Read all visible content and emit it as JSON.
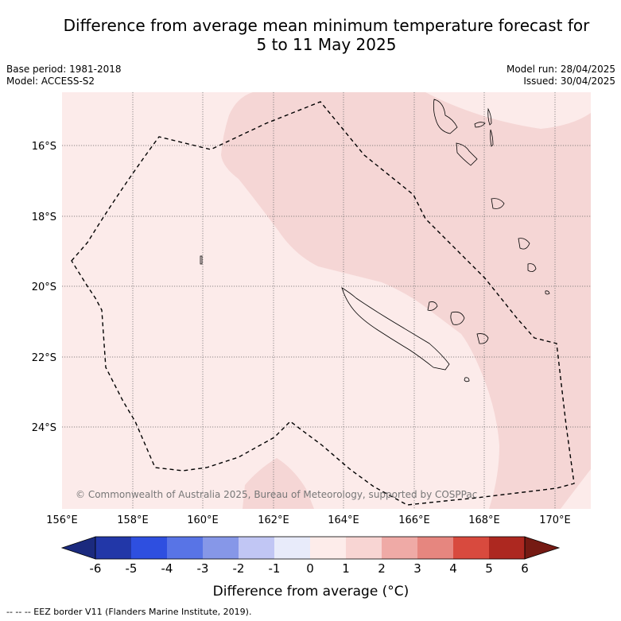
{
  "title_line1": "Difference from average mean minimum temperature forecast for",
  "title_line2": "5 to 11 May 2025",
  "base_period": "Base period: 1981-2018",
  "model": "Model: ACCESS-S2",
  "model_run": "Model run: 28/04/2025",
  "issued": "Issued: 30/04/2025",
  "copyright": "© Commonwealth of Australia 2025, Bureau of Meteorology, supported by COSPPac",
  "colorbar_label": "Difference from average (°C)",
  "footnote": "-- -- -- EEZ border V11 (Flanders Marine Institute, 2019).",
  "x_ticks": [
    "156°E",
    "158°E",
    "160°E",
    "162°E",
    "164°E",
    "166°E",
    "168°E",
    "170°E"
  ],
  "y_ticks": [
    "16°S",
    "18°S",
    "20°S",
    "22°S",
    "24°S"
  ],
  "colorbar_ticks": [
    "-6",
    "-5",
    "-4",
    "-3",
    "-2",
    "-1",
    "0",
    "1",
    "2",
    "3",
    "4",
    "5",
    "6"
  ],
  "colors": {
    "bins": [
      "#2237a8",
      "#2e4fe0",
      "#5874e6",
      "#8697e8",
      "#c1c6f4",
      "#e8ebfa",
      "#fdecea",
      "#f8d5d3",
      "#efaaa6",
      "#e6867f",
      "#d84a3e",
      "#ad2820"
    ],
    "low_extend": "#1b2a7e",
    "high_extend": "#751a13",
    "zone_0_1": "#fcebea",
    "zone_1_2": "#f5d6d5"
  }
}
